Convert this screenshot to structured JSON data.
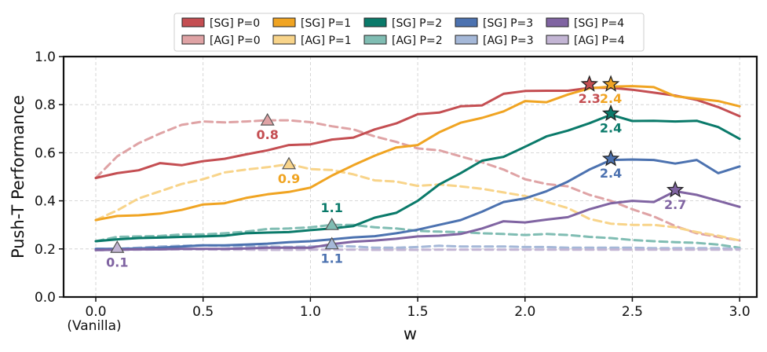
{
  "chart_data": {
    "type": "line",
    "title": "",
    "xlabel": "w",
    "ylabel": "Push-T Performance",
    "xlim": [
      -0.15,
      3.08
    ],
    "ylim": [
      0.0,
      1.0
    ],
    "x_ticks": [
      0.0,
      0.5,
      1.0,
      1.5,
      2.0,
      2.5,
      3.0
    ],
    "x_tick_labels": [
      "0.0",
      "0.5",
      "1.0",
      "1.5",
      "2.0",
      "2.5",
      "3.0"
    ],
    "x_tick_sublabel": "(Vanilla)",
    "y_ticks": [
      0.0,
      0.2,
      0.4,
      0.6,
      0.8,
      1.0
    ],
    "y_tick_labels": [
      "0.0",
      "0.2",
      "0.4",
      "0.6",
      "0.8",
      "1.0"
    ],
    "grid": true,
    "legend_position": "top-center",
    "x": [
      0.0,
      0.1,
      0.2,
      0.3,
      0.4,
      0.5,
      0.6,
      0.7,
      0.8,
      0.9,
      1.0,
      1.1,
      1.2,
      1.3,
      1.4,
      1.5,
      1.6,
      1.7,
      1.8,
      1.9,
      2.0,
      2.1,
      2.2,
      2.3,
      2.4,
      2.5,
      2.6,
      2.7,
      2.8,
      2.9,
      3.0
    ],
    "series": [
      {
        "name": "[SG] P=0",
        "color": "#c44e52",
        "dash": false,
        "values": [
          0.495,
          0.515,
          0.527,
          0.557,
          0.548,
          0.565,
          0.575,
          0.593,
          0.61,
          0.632,
          0.635,
          0.655,
          0.663,
          0.697,
          0.722,
          0.76,
          0.767,
          0.793,
          0.797,
          0.845,
          0.857,
          0.858,
          0.858,
          0.87,
          0.87,
          0.862,
          0.85,
          0.838,
          0.82,
          0.79,
          0.752
        ]
      },
      {
        "name": "[AG] P=0",
        "color": "#dfa3a5",
        "dash": true,
        "values": [
          0.495,
          0.585,
          0.64,
          0.68,
          0.716,
          0.73,
          0.726,
          0.73,
          0.735,
          0.735,
          0.727,
          0.71,
          0.697,
          0.668,
          0.645,
          0.618,
          0.61,
          0.585,
          0.56,
          0.53,
          0.49,
          0.47,
          0.46,
          0.425,
          0.4,
          0.365,
          0.335,
          0.295,
          0.265,
          0.25,
          0.235
        ]
      },
      {
        "name": "[SG] P=1",
        "color": "#f0a422",
        "dash": false,
        "values": [
          0.32,
          0.337,
          0.34,
          0.347,
          0.362,
          0.385,
          0.39,
          0.412,
          0.427,
          0.437,
          0.455,
          0.505,
          0.548,
          0.588,
          0.622,
          0.632,
          0.685,
          0.725,
          0.745,
          0.772,
          0.815,
          0.81,
          0.842,
          0.868,
          0.875,
          0.877,
          0.873,
          0.835,
          0.825,
          0.815,
          0.793
        ]
      },
      {
        "name": "[AG] P=1",
        "color": "#f8d48a",
        "dash": true,
        "values": [
          0.32,
          0.36,
          0.41,
          0.44,
          0.47,
          0.49,
          0.518,
          0.53,
          0.54,
          0.553,
          0.532,
          0.528,
          0.51,
          0.485,
          0.48,
          0.462,
          0.468,
          0.46,
          0.45,
          0.435,
          0.42,
          0.395,
          0.37,
          0.325,
          0.305,
          0.3,
          0.3,
          0.29,
          0.27,
          0.255,
          0.235
        ]
      },
      {
        "name": "[SG] P=2",
        "color": "#0a7a6a",
        "dash": false,
        "values": [
          0.232,
          0.24,
          0.245,
          0.247,
          0.25,
          0.252,
          0.255,
          0.265,
          0.268,
          0.27,
          0.278,
          0.285,
          0.295,
          0.33,
          0.35,
          0.4,
          0.468,
          0.515,
          0.567,
          0.583,
          0.625,
          0.668,
          0.692,
          0.723,
          0.758,
          0.732,
          0.733,
          0.73,
          0.733,
          0.707,
          0.658
        ]
      },
      {
        "name": "[AG] P=2",
        "color": "#80bdb3",
        "dash": true,
        "values": [
          0.232,
          0.25,
          0.252,
          0.254,
          0.26,
          0.26,
          0.265,
          0.272,
          0.283,
          0.285,
          0.29,
          0.3,
          0.3,
          0.29,
          0.285,
          0.275,
          0.272,
          0.27,
          0.265,
          0.262,
          0.258,
          0.262,
          0.258,
          0.25,
          0.245,
          0.237,
          0.232,
          0.228,
          0.225,
          0.218,
          0.205
        ]
      },
      {
        "name": "[SG] P=3",
        "color": "#4c72b0",
        "dash": false,
        "values": [
          0.2,
          0.2,
          0.202,
          0.205,
          0.21,
          0.215,
          0.215,
          0.218,
          0.222,
          0.228,
          0.232,
          0.24,
          0.248,
          0.253,
          0.265,
          0.28,
          0.3,
          0.32,
          0.355,
          0.395,
          0.41,
          0.44,
          0.48,
          0.53,
          0.57,
          0.572,
          0.57,
          0.555,
          0.57,
          0.515,
          0.543
        ]
      },
      {
        "name": "[AG] P=3",
        "color": "#a5b8d8",
        "dash": true,
        "values": [
          0.2,
          0.2,
          0.205,
          0.21,
          0.213,
          0.215,
          0.213,
          0.21,
          0.21,
          0.208,
          0.21,
          0.212,
          0.21,
          0.205,
          0.205,
          0.208,
          0.213,
          0.21,
          0.21,
          0.21,
          0.208,
          0.208,
          0.205,
          0.205,
          0.205,
          0.205,
          0.203,
          0.203,
          0.203,
          0.203,
          0.2
        ]
      },
      {
        "name": "[SG] P=4",
        "color": "#8064a2",
        "dash": false,
        "values": [
          0.195,
          0.197,
          0.198,
          0.198,
          0.2,
          0.2,
          0.2,
          0.202,
          0.205,
          0.205,
          0.205,
          0.22,
          0.23,
          0.235,
          0.242,
          0.252,
          0.255,
          0.262,
          0.285,
          0.315,
          0.31,
          0.322,
          0.332,
          0.365,
          0.39,
          0.4,
          0.395,
          0.44,
          0.425,
          0.4,
          0.375
        ]
      },
      {
        "name": "[AG] P=4",
        "color": "#c3b5d4",
        "dash": true,
        "values": [
          0.195,
          0.196,
          0.197,
          0.198,
          0.198,
          0.198,
          0.197,
          0.197,
          0.196,
          0.196,
          0.197,
          0.197,
          0.197,
          0.196,
          0.196,
          0.196,
          0.197,
          0.197,
          0.197,
          0.197,
          0.197,
          0.197,
          0.197,
          0.197,
          0.197,
          0.197,
          0.197,
          0.197,
          0.197,
          0.197,
          0.197
        ]
      }
    ],
    "annotations": [
      {
        "series": "[AG] P=0",
        "marker": "triangle",
        "x": 0.8,
        "y": 0.735,
        "label": "0.8",
        "label_pos": "below"
      },
      {
        "series": "[AG] P=1",
        "marker": "triangle",
        "x": 0.9,
        "y": 0.553,
        "label": "0.9",
        "label_pos": "below"
      },
      {
        "series": "[AG] P=2",
        "marker": "triangle",
        "x": 1.1,
        "y": 0.3,
        "label": "1.1",
        "label_pos": "above"
      },
      {
        "series": "[AG] P=3",
        "marker": "triangle",
        "x": 1.1,
        "y": 0.22,
        "label": "1.1",
        "label_pos": "below"
      },
      {
        "series": "[AG] P=4",
        "marker": "triangle",
        "x": 0.1,
        "y": 0.205,
        "label": "0.1",
        "label_pos": "below"
      },
      {
        "series": "[SG] P=0",
        "marker": "star",
        "x": 2.3,
        "y": 0.885,
        "label": "2.3",
        "label_pos": "below"
      },
      {
        "series": "[SG] P=1",
        "marker": "star",
        "x": 2.4,
        "y": 0.885,
        "label": "2.4",
        "label_pos": "below"
      },
      {
        "series": "[SG] P=2",
        "marker": "star",
        "x": 2.4,
        "y": 0.763,
        "label": "2.4",
        "label_pos": "below"
      },
      {
        "series": "[SG] P=3",
        "marker": "star",
        "x": 2.4,
        "y": 0.575,
        "label": "2.4",
        "label_pos": "below"
      },
      {
        "series": "[SG] P=4",
        "marker": "star",
        "x": 2.7,
        "y": 0.445,
        "label": "2.7",
        "label_pos": "below"
      }
    ]
  }
}
